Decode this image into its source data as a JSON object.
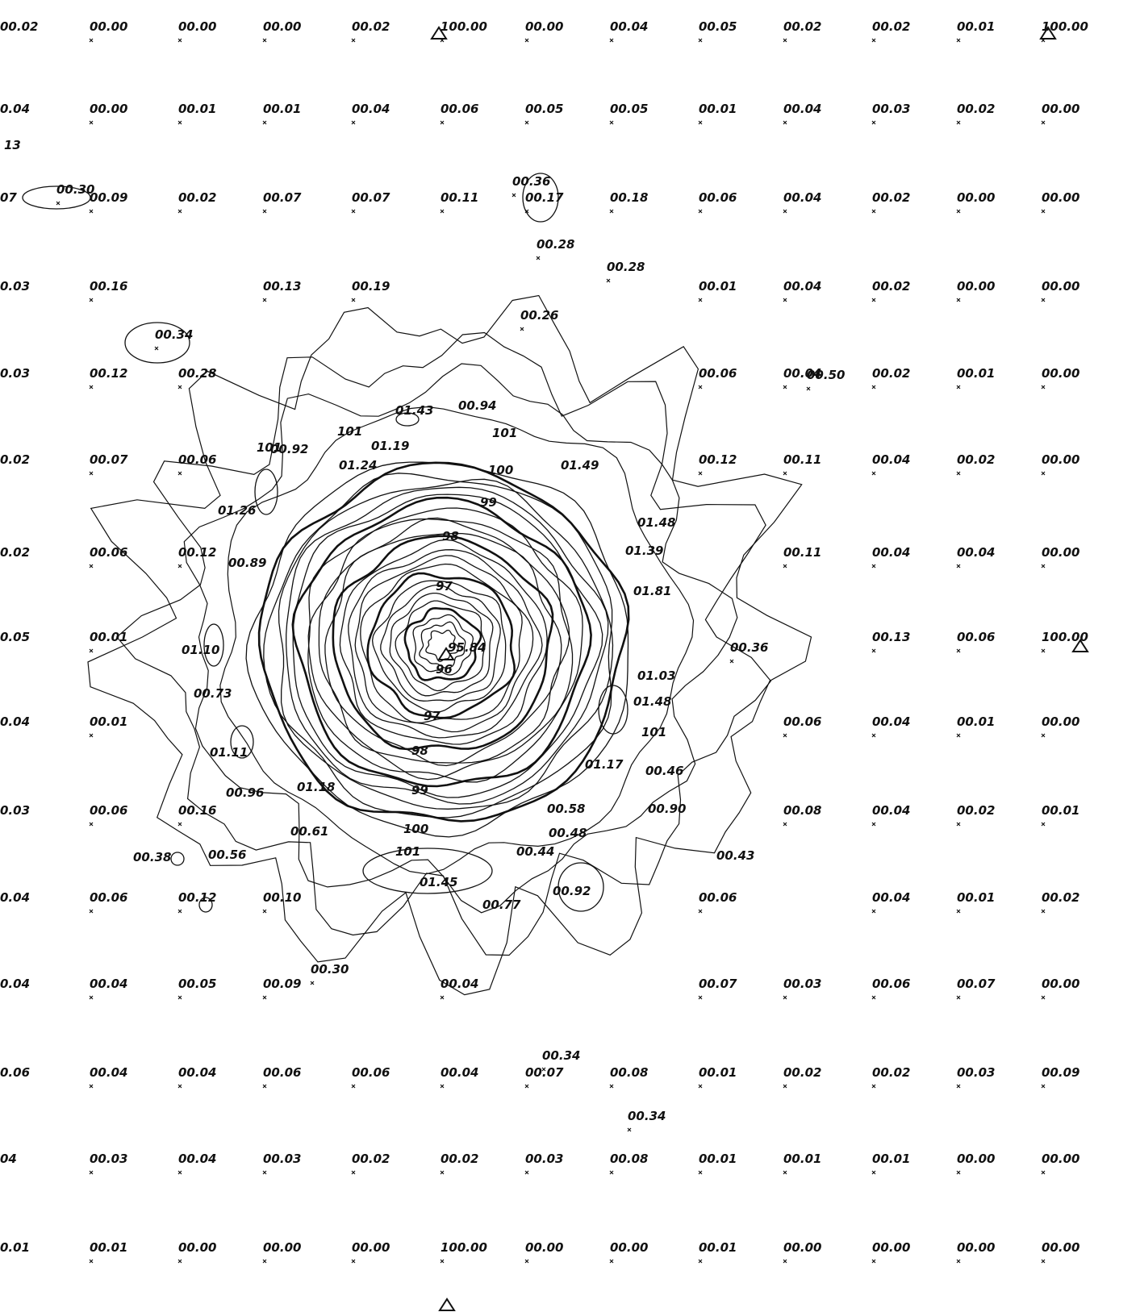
{
  "grid": {
    "rows": [
      [
        "00.02",
        "00.00",
        "00.00",
        "00.00",
        "00.02",
        "100.00",
        "00.00",
        "00.04",
        "00.05",
        "00.02",
        "00.02",
        "00.01",
        "100.00"
      ],
      [
        "0.04",
        "00.00",
        "00.01",
        "00.01",
        "00.04",
        "00.06",
        "00.05",
        "00.05",
        "00.01",
        "00.04",
        "00.03",
        "00.02",
        "00.00"
      ],
      [
        "07",
        "00.09",
        "00.02",
        "00.07",
        "00.07",
        "00.11",
        "00.17",
        "00.18",
        "00.06",
        "00.04",
        "00.02",
        "00.00",
        "00.00"
      ],
      [
        "0.03",
        "00.16",
        null,
        "00.13",
        "00.19",
        null,
        null,
        null,
        "00.01",
        "00.04",
        "00.02",
        "00.00",
        "00.00"
      ],
      [
        "0.03",
        "00.12",
        "00.28",
        null,
        null,
        null,
        null,
        null,
        "00.06",
        "00.04",
        "00.02",
        "00.01",
        "00.00"
      ],
      [
        "0.02",
        "00.07",
        "00.06",
        null,
        null,
        null,
        null,
        null,
        "00.12",
        "00.11",
        "00.04",
        "00.02",
        "00.00"
      ],
      [
        "0.02",
        "00.06",
        "00.12",
        null,
        null,
        null,
        null,
        null,
        null,
        "00.11",
        "00.04",
        "00.04",
        "00.00"
      ],
      [
        "0.05",
        "00.01",
        null,
        null,
        null,
        null,
        null,
        null,
        null,
        null,
        "00.13",
        "00.06",
        "100.00"
      ],
      [
        "0.04",
        "00.01",
        null,
        null,
        null,
        null,
        null,
        null,
        null,
        "00.06",
        "00.04",
        "00.01",
        "00.00"
      ],
      [
        "0.03",
        "00.06",
        "00.16",
        null,
        null,
        null,
        null,
        null,
        null,
        "00.08",
        "00.04",
        "00.02",
        "00.01"
      ],
      [
        "0.04",
        "00.06",
        "00.12",
        "00.10",
        null,
        null,
        null,
        null,
        "00.06",
        null,
        "00.04",
        "00.01",
        "00.02"
      ],
      [
        "0.04",
        "00.04",
        "00.05",
        "00.09",
        null,
        "00.04",
        null,
        null,
        "00.07",
        "00.03",
        "00.06",
        "00.07",
        "00.00"
      ],
      [
        "0.06",
        "00.04",
        "00.04",
        "00.06",
        "00.06",
        "00.04",
        "00.07",
        "00.08",
        "00.01",
        "00.02",
        "00.02",
        "00.03",
        "00.09"
      ],
      [
        "04",
        "00.03",
        "00.04",
        "00.03",
        "00.02",
        "00.02",
        "00.03",
        "00.08",
        "00.01",
        "00.01",
        "00.01",
        "00.00",
        "00.00"
      ],
      [
        "0.01",
        "00.01",
        "00.00",
        "00.00",
        "00.00",
        "100.00",
        "00.00",
        "00.00",
        "00.01",
        "00.00",
        "00.00",
        "00.00",
        "00.00"
      ]
    ]
  },
  "extra_labels": [
    "13",
    "00.30",
    "00.36",
    "00.28",
    "00.28",
    "00.26",
    "00.34",
    "00.50",
    "00.36",
    "00.34",
    "00.34",
    "00.30"
  ],
  "contour_labels": [
    "101",
    "01.43",
    "00.94",
    "01.19",
    "01.24",
    "00.92",
    "101",
    "101",
    "01.49",
    "100",
    "99",
    "98",
    "97",
    "95.84",
    "96",
    "97",
    "98",
    "99",
    "100",
    "101",
    "01.26",
    "00.89",
    "01.48",
    "01.39",
    "01.81",
    "01.10",
    "00.73",
    "01.03",
    "01.48",
    "101",
    "01.17",
    "00.46",
    "00.58",
    "00.90",
    "00.48",
    "00.44",
    "00.43",
    "00.92",
    "00.77",
    "01.45",
    "00.96",
    "01.18",
    "00.61",
    "00.38",
    "00.56",
    "01.11"
  ]
}
